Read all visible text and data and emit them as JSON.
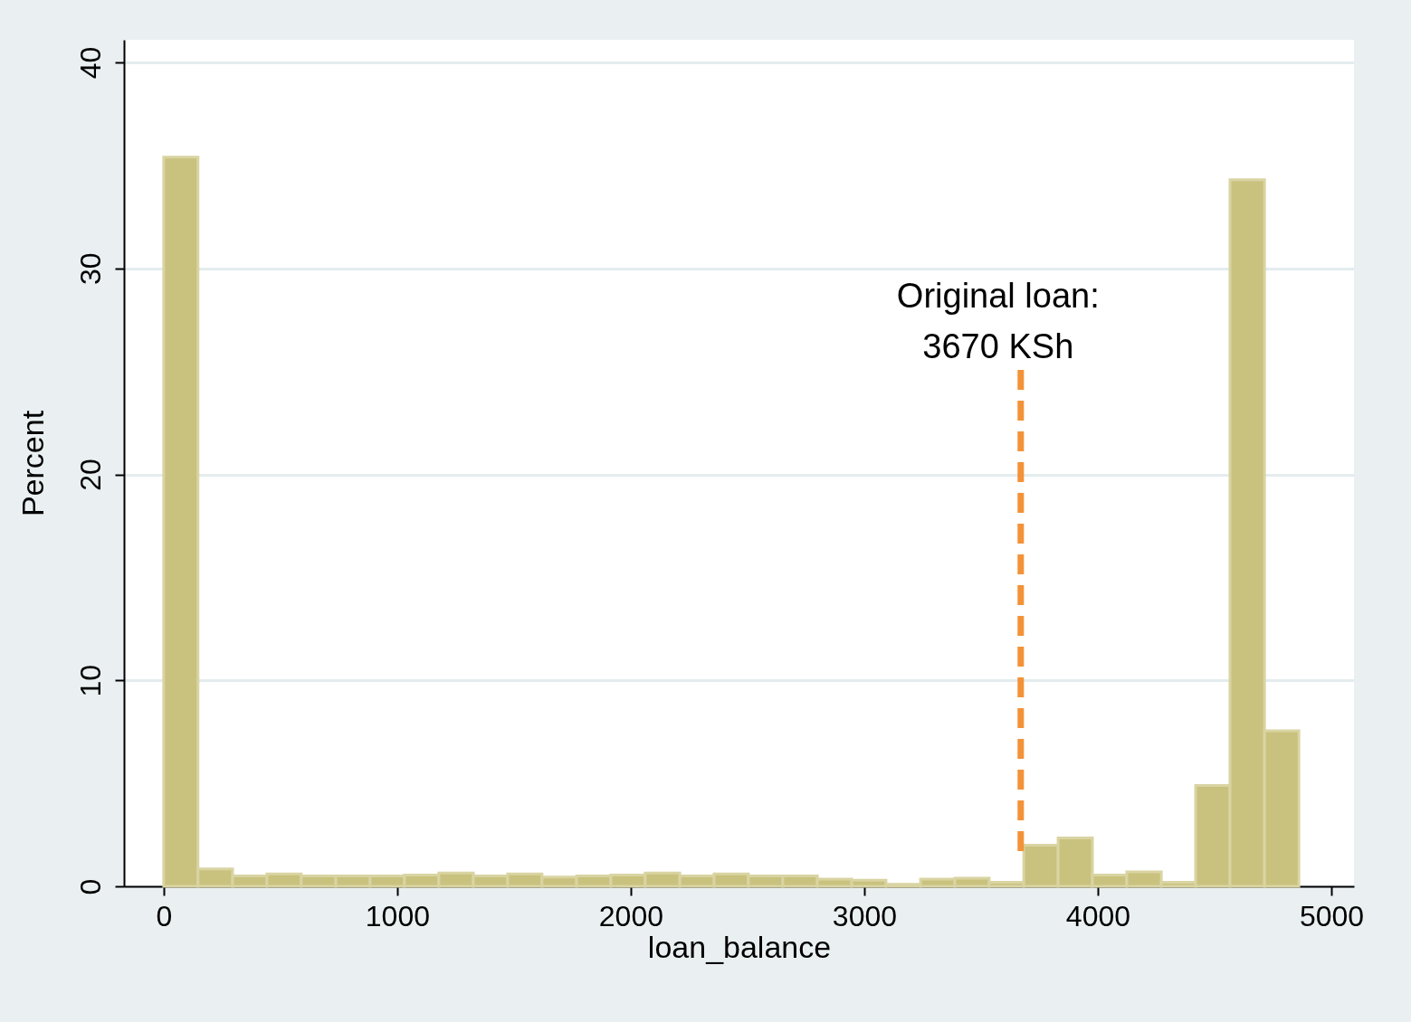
{
  "chart_data": {
    "type": "histogram",
    "xlabel": "loan_balance",
    "ylabel": "Percent",
    "bins": [
      0,
      147,
      295,
      442,
      589,
      737,
      884,
      1031,
      1178,
      1326,
      1473,
      1620,
      1768,
      1915,
      2062,
      2210,
      2357,
      2504,
      2651,
      2799,
      2946,
      3093,
      3241,
      3388,
      3535,
      3683,
      3830,
      3977,
      4124,
      4272,
      4419,
      4566,
      4714,
      4861
    ],
    "values": [
      35.4,
      0.85,
      0.5,
      0.6,
      0.5,
      0.5,
      0.5,
      0.55,
      0.65,
      0.5,
      0.6,
      0.45,
      0.5,
      0.55,
      0.65,
      0.5,
      0.6,
      0.5,
      0.5,
      0.35,
      0.3,
      0.1,
      0.35,
      0.4,
      0.2,
      2.0,
      2.35,
      0.55,
      0.7,
      0.2,
      4.9,
      34.3,
      7.55
    ],
    "color": "#c9c27e",
    "xlim": [
      -170,
      5097
    ],
    "ylim": [
      0,
      41.1
    ],
    "xticks": [
      0,
      1000,
      2000,
      3000,
      4000,
      5000
    ],
    "yticks": [
      0,
      10,
      20,
      30,
      40
    ],
    "grid": "y",
    "ref_lines": [
      {
        "axis": "x",
        "value": 3670,
        "label": "Original loan:\n3670 KSh",
        "color": "#f39237",
        "line_style": "dashed"
      }
    ]
  }
}
